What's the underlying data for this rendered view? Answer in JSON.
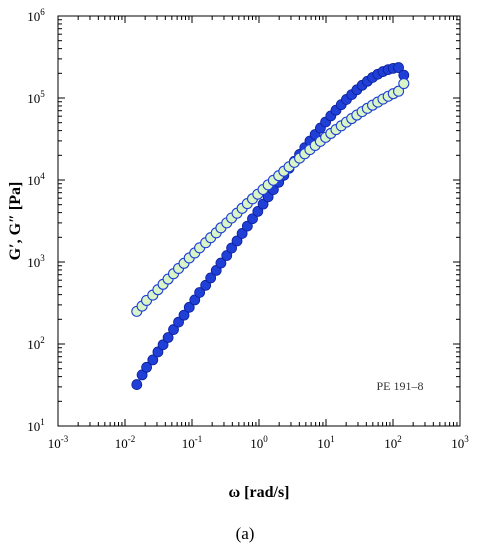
{
  "chart_data": {
    "type": "scatter",
    "xscale": "log",
    "yscale": "log",
    "xlim": [
      0.001,
      1000
    ],
    "ylim": [
      10,
      1000000
    ],
    "xticks": [
      0.001,
      0.01,
      0.1,
      1,
      10,
      100,
      1000
    ],
    "yticks": [
      10,
      100,
      1000,
      10000,
      100000,
      1000000
    ],
    "xtick_labels": [
      {
        "base": "10",
        "exp": "-3"
      },
      {
        "base": "10",
        "exp": "-2"
      },
      {
        "base": "10",
        "exp": "-1"
      },
      {
        "base": "10",
        "exp": "0"
      },
      {
        "base": "10",
        "exp": "1"
      },
      {
        "base": "10",
        "exp": "2"
      },
      {
        "base": "10",
        "exp": "3"
      }
    ],
    "ytick_labels": [
      {
        "base": "10",
        "exp": "1"
      },
      {
        "base": "10",
        "exp": "2"
      },
      {
        "base": "10",
        "exp": "3"
      },
      {
        "base": "10",
        "exp": "4"
      },
      {
        "base": "10",
        "exp": "5"
      },
      {
        "base": "10",
        "exp": "6"
      }
    ],
    "xlabel": "ω [rad/s]",
    "ylabel": "G′, G″ [Pa]",
    "annotation": "PE 191–8",
    "grid": false,
    "series": [
      {
        "marker": "filled-circle",
        "color": "#1f3fd6",
        "x": [
          0.015,
          0.018,
          0.021,
          0.026,
          0.031,
          0.037,
          0.044,
          0.053,
          0.063,
          0.076,
          0.091,
          0.11,
          0.13,
          0.16,
          0.19,
          0.23,
          0.27,
          0.33,
          0.39,
          0.47,
          0.56,
          0.67,
          0.8,
          0.96,
          1.15,
          1.37,
          1.64,
          1.97,
          2.35,
          2.81,
          3.37,
          4.03,
          4.82,
          5.76,
          6.89,
          8.25,
          9.87,
          11.8,
          14.1,
          16.9,
          20.2,
          24.2,
          28.9,
          34.6,
          41.4,
          49.5,
          59.3,
          70.9,
          84.8,
          101,
          121,
          145
        ],
        "y": [
          32,
          42,
          52,
          64,
          80,
          98,
          120,
          150,
          185,
          225,
          280,
          345,
          425,
          520,
          640,
          790,
          970,
          1200,
          1480,
          1810,
          2230,
          2740,
          3370,
          4140,
          5080,
          6230,
          7640,
          9380,
          11400,
          13900,
          16900,
          20500,
          24800,
          29900,
          35900,
          43000,
          51000,
          60500,
          71000,
          83000,
          96000,
          110000,
          126000,
          143000,
          160000,
          178000,
          195000,
          210000,
          222000,
          230000,
          235000,
          190000
        ]
      },
      {
        "marker": "open-circle",
        "color": "#1f3fd6",
        "fill": "#d9f5c8",
        "x": [
          0.015,
          0.018,
          0.021,
          0.026,
          0.031,
          0.037,
          0.044,
          0.053,
          0.063,
          0.076,
          0.091,
          0.11,
          0.13,
          0.16,
          0.19,
          0.23,
          0.27,
          0.33,
          0.39,
          0.47,
          0.56,
          0.67,
          0.8,
          0.96,
          1.15,
          1.37,
          1.64,
          1.97,
          2.35,
          2.81,
          3.37,
          4.03,
          4.82,
          5.76,
          6.89,
          8.25,
          9.87,
          11.8,
          14.1,
          16.9,
          20.2,
          24.2,
          28.9,
          34.6,
          41.4,
          49.5,
          59.3,
          70.9,
          84.8,
          101,
          121,
          145
        ],
        "y": [
          250,
          290,
          340,
          395,
          460,
          535,
          620,
          720,
          835,
          965,
          1120,
          1290,
          1490,
          1720,
          1980,
          2270,
          2610,
          3000,
          3440,
          3940,
          4510,
          5160,
          5890,
          6720,
          7660,
          8720,
          9920,
          11300,
          12800,
          14500,
          16400,
          18500,
          20900,
          23500,
          26400,
          29600,
          33100,
          37000,
          41200,
          45800,
          50800,
          56200,
          62000,
          68200,
          74800,
          81800,
          89200,
          97000,
          105000,
          113000,
          121000,
          150000
        ]
      }
    ]
  },
  "caption": "(a)"
}
